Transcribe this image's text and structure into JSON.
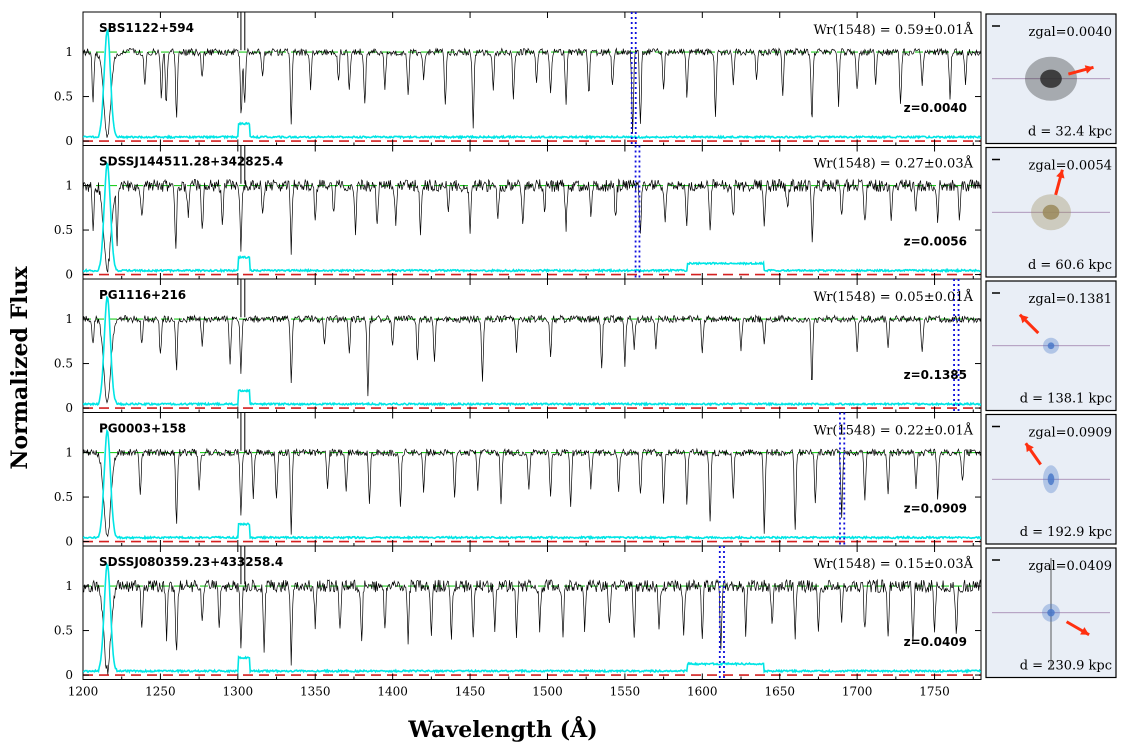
{
  "figure": {
    "xlabel": "Wavelength (Å)",
    "ylabel": "Normalized Flux"
  },
  "chart_data": {
    "type": "line",
    "xlim": [
      1200,
      1780
    ],
    "ylim": [
      -0.05,
      1.45
    ],
    "x_ticks": [
      1200,
      1250,
      1300,
      1350,
      1400,
      1450,
      1500,
      1550,
      1600,
      1650,
      1700,
      1750
    ],
    "y_ticks": [
      0,
      0.5,
      1
    ],
    "y_tick_labels": [
      "0",
      "0.5",
      "1"
    ],
    "colors": {
      "flux": "#000000",
      "error": "#00e5e5",
      "continuum": "#22cc22",
      "zero": "#d42020",
      "civ_marker": "#1010dd",
      "arrow": "#ff3010"
    },
    "panels": [
      {
        "name": "SBS1122+594",
        "z_label": "z=0.0040",
        "wr_label": "Wr(1548) = 0.59±0.01Å",
        "z": 0.004,
        "civ_markers": [
          1554.4,
          1557.0
        ],
        "absorption_lines": [
          1206.5,
          1215.7,
          1239.9,
          1250.6,
          1253.8,
          1260.4,
          1277.0,
          1302.2,
          1304.4,
          1316,
          1334.5,
          1347,
          1365,
          1372,
          1382,
          1395,
          1410,
          1420,
          1434,
          1452,
          1465,
          1478,
          1493,
          1502,
          1512,
          1526.7,
          1542,
          1555.0,
          1560,
          1575,
          1590,
          1608.5,
          1620,
          1635,
          1652,
          1670.8,
          1688,
          1700,
          1712,
          1728,
          1742,
          1760,
          1770
        ],
        "line_depths": [
          0.6,
          0.95,
          0.4,
          0.5,
          0.6,
          0.75,
          0.3,
          0.7,
          0.6,
          0.3,
          0.8,
          0.4,
          0.35,
          0.45,
          0.6,
          0.4,
          0.5,
          0.3,
          0.55,
          0.85,
          0.4,
          0.5,
          0.35,
          0.45,
          0.6,
          0.5,
          0.4,
          0.9,
          0.8,
          0.4,
          0.5,
          0.7,
          0.4,
          0.35,
          0.5,
          0.8,
          0.6,
          0.45,
          0.35,
          0.55,
          0.4,
          0.5,
          0.35
        ],
        "galaxy": {
          "z_text": "zgal=0.0040",
          "d_text": "d = 32.4 kpc",
          "arrow_deg": 15
        }
      },
      {
        "name": "SDSSJ144511.28+342825.4",
        "z_label": "z=0.0056",
        "wr_label": "Wr(1548) = 0.27±0.03Å",
        "z": 0.0056,
        "civ_markers": [
          1556.9,
          1559.4
        ],
        "absorption_lines": [
          1206.5,
          1215.7,
          1222,
          1238,
          1260,
          1268,
          1277,
          1290,
          1302,
          1316,
          1334.5,
          1350,
          1362,
          1376,
          1390,
          1402,
          1418,
          1436,
          1450,
          1468,
          1484,
          1498,
          1512,
          1528,
          1544,
          1560,
          1576,
          1590,
          1605,
          1620,
          1640,
          1655,
          1671,
          1690,
          1705,
          1722,
          1738,
          1752,
          1766
        ],
        "line_depths": [
          0.5,
          0.95,
          0.6,
          0.4,
          0.7,
          0.4,
          0.5,
          0.45,
          0.7,
          0.35,
          0.75,
          0.4,
          0.35,
          0.55,
          0.45,
          0.4,
          0.5,
          0.35,
          0.6,
          0.4,
          0.45,
          0.3,
          0.5,
          0.4,
          0.35,
          0.6,
          0.4,
          0.45,
          0.5,
          0.35,
          0.4,
          0.3,
          0.6,
          0.35,
          0.4,
          0.45,
          0.3,
          0.4,
          0.35
        ],
        "galaxy": {
          "z_text": "zgal=0.0054",
          "d_text": "d = 60.6 kpc",
          "arrow_deg": 75
        }
      },
      {
        "name": "PG1116+216",
        "z_label": "z=0.1385",
        "wr_label": "Wr(1548) = 0.05±0.01Å",
        "z": 0.1385,
        "civ_markers": [
          1762.6,
          1765.5
        ],
        "absorption_lines": [
          1206.5,
          1215.7,
          1238,
          1250,
          1260.4,
          1277,
          1295,
          1302,
          1334.5,
          1356,
          1372,
          1384,
          1400,
          1416,
          1427,
          1458,
          1480,
          1502,
          1535,
          1550,
          1556,
          1570,
          1600,
          1625,
          1640,
          1670.8,
          1700,
          1720,
          1742
        ],
        "line_depths": [
          0.3,
          0.95,
          0.3,
          0.4,
          0.55,
          0.3,
          0.5,
          0.6,
          0.7,
          0.3,
          0.4,
          0.85,
          0.3,
          0.5,
          0.45,
          0.7,
          0.35,
          0.4,
          0.55,
          0.5,
          0.35,
          0.3,
          0.4,
          0.35,
          0.3,
          0.75,
          0.35,
          0.3,
          0.4
        ],
        "galaxy": {
          "z_text": "zgal=0.1381",
          "d_text": "d = 138.1 kpc",
          "arrow_deg": 135
        }
      },
      {
        "name": "PG0003+158",
        "z_label": "z=0.0909",
        "wr_label": "Wr(1548) = 0.22±0.01Å",
        "z": 0.0909,
        "civ_markers": [
          1688.9,
          1691.7
        ],
        "absorption_lines": [
          1215.7,
          1237,
          1260.4,
          1275,
          1302,
          1310,
          1325,
          1334.5,
          1358,
          1370,
          1385,
          1405,
          1420,
          1440,
          1455,
          1470,
          1488,
          1502,
          1515,
          1528,
          1546,
          1560,
          1575,
          1590,
          1605,
          1620,
          1640,
          1660,
          1673,
          1690,
          1705,
          1720,
          1738,
          1752,
          1768
        ],
        "line_depths": [
          0.95,
          0.5,
          0.8,
          0.4,
          0.7,
          0.5,
          0.55,
          0.9,
          0.4,
          0.45,
          0.55,
          0.6,
          0.45,
          0.5,
          0.4,
          0.55,
          0.45,
          0.5,
          0.6,
          0.4,
          0.45,
          0.5,
          0.55,
          0.6,
          0.8,
          0.5,
          0.9,
          0.9,
          0.6,
          0.7,
          0.5,
          0.45,
          0.4,
          0.5,
          0.35
        ],
        "galaxy": {
          "z_text": "zgal=0.0909",
          "d_text": "d = 192.9 kpc",
          "arrow_deg": 125
        }
      },
      {
        "name": "SDSSJ080359.23+433258.4",
        "z_label": "z=0.0409",
        "wr_label": "Wr(1548) = 0.15±0.03Å",
        "z": 0.0409,
        "civ_markers": [
          1611.3,
          1614.0
        ],
        "absorption_lines": [
          1215.7,
          1238,
          1254,
          1260.4,
          1277,
          1288,
          1302,
          1317,
          1334.5,
          1350,
          1366,
          1380,
          1395,
          1410,
          1425,
          1438,
          1452,
          1466,
          1480,
          1495,
          1510,
          1524,
          1540,
          1556,
          1572,
          1588,
          1600,
          1612,
          1628,
          1645,
          1660,
          1675,
          1690,
          1705,
          1720,
          1736,
          1750,
          1764
        ],
        "line_depths": [
          0.95,
          0.5,
          0.6,
          0.75,
          0.45,
          0.5,
          0.7,
          0.8,
          0.85,
          0.45,
          0.5,
          0.55,
          0.45,
          0.6,
          0.5,
          0.55,
          0.6,
          0.5,
          0.55,
          0.45,
          0.6,
          0.5,
          0.45,
          0.6,
          0.5,
          0.55,
          0.6,
          0.7,
          0.5,
          0.45,
          0.55,
          0.5,
          0.45,
          0.5,
          0.55,
          0.6,
          0.5,
          0.55
        ],
        "galaxy": {
          "z_text": "zgal=0.0409",
          "d_text": "d = 230.9 kpc",
          "arrow_deg": -30
        }
      }
    ]
  }
}
